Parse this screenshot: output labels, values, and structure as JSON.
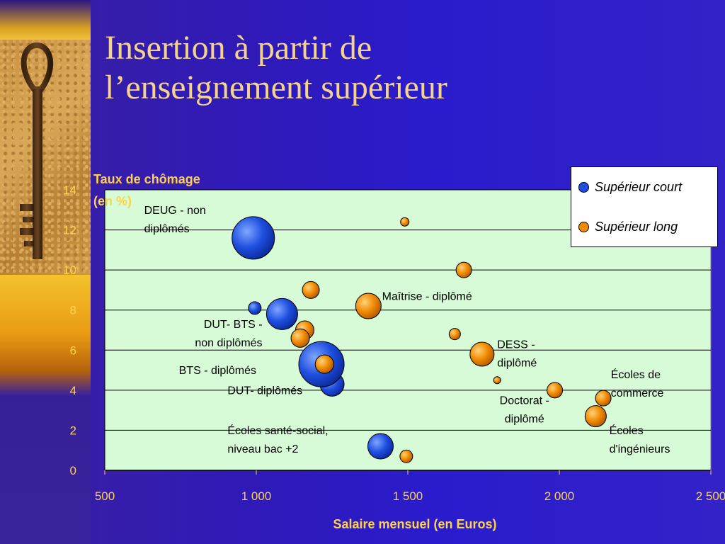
{
  "title_line1": "Insertion à partir de",
  "title_line2": "l’enseignement supérieur",
  "chart_data": {
    "type": "scatter",
    "ylabel": "Taux de chômage",
    "ylabel2": "(en %)",
    "xlabel": "Salaire mensuel (en Euros)",
    "xlim": [
      500,
      2500
    ],
    "ylim": [
      0,
      14
    ],
    "x_ticks": [
      500,
      1000,
      1500,
      2000,
      2500
    ],
    "x_tick_labels": [
      "500",
      "1 000",
      "1 500",
      "2 000",
      "2 500"
    ],
    "y_ticks": [
      0,
      2,
      4,
      6,
      8,
      10,
      12,
      14
    ],
    "y_tick_labels": [
      "0",
      "2",
      "4",
      "6",
      "8",
      "10",
      "12",
      "14"
    ],
    "grid": true,
    "legend_position": "top-right",
    "colors": {
      "court": "#1f4fe0",
      "long": "#f08a00",
      "plot_bg": "#d6fbd6"
    },
    "series": [
      {
        "name": "Supérieur court",
        "key": "court",
        "points": [
          {
            "x": 990,
            "y": 11.6,
            "size": 30
          },
          {
            "x": 995,
            "y": 8.1,
            "size": 9
          },
          {
            "x": 1085,
            "y": 7.8,
            "size": 22
          },
          {
            "x": 1250,
            "y": 4.3,
            "size": 17
          },
          {
            "x": 1215,
            "y": 5.3,
            "size": 32
          },
          {
            "x": 1410,
            "y": 1.2,
            "size": 18
          }
        ]
      },
      {
        "name": "Supérieur long",
        "key": "long",
        "points": [
          {
            "x": 1490,
            "y": 12.4,
            "size": 6
          },
          {
            "x": 1685,
            "y": 10.0,
            "size": 11
          },
          {
            "x": 1180,
            "y": 9.0,
            "size": 12
          },
          {
            "x": 1370,
            "y": 8.2,
            "size": 18
          },
          {
            "x": 1160,
            "y": 7.0,
            "size": 13
          },
          {
            "x": 1145,
            "y": 6.6,
            "size": 13
          },
          {
            "x": 1655,
            "y": 6.8,
            "size": 8
          },
          {
            "x": 1745,
            "y": 5.8,
            "size": 17
          },
          {
            "x": 1225,
            "y": 5.3,
            "size": 13
          },
          {
            "x": 1795,
            "y": 4.5,
            "size": 5
          },
          {
            "x": 1985,
            "y": 4.0,
            "size": 11
          },
          {
            "x": 2145,
            "y": 3.6,
            "size": 11
          },
          {
            "x": 2120,
            "y": 2.7,
            "size": 15
          },
          {
            "x": 1495,
            "y": 0.7,
            "size": 9
          }
        ]
      }
    ],
    "annotations": [
      {
        "lines": [
          "DEUG - non",
          "diplômés"
        ],
        "x": 630,
        "y": 12.8,
        "anchor": "start"
      },
      {
        "lines": [
          "Maîtrise - diplômé"
        ],
        "x": 1415,
        "y": 8.5,
        "anchor": "start"
      },
      {
        "lines": [
          "DUT- BTS    -",
          "non diplômés"
        ],
        "x": 1020,
        "y": 7.1,
        "anchor": "end"
      },
      {
        "lines": [
          "DESS -",
          "diplômé"
        ],
        "x": 1795,
        "y": 6.1,
        "anchor": "start"
      },
      {
        "lines": [
          "BTS - diplômés"
        ],
        "x": 1000,
        "y": 4.8,
        "anchor": "end"
      },
      {
        "lines": [
          "DUT- diplômés"
        ],
        "x": 905,
        "y": 3.8,
        "anchor": "start"
      },
      {
        "lines": [
          "Écoles de",
          "commerce"
        ],
        "x": 2170,
        "y": 4.6,
        "anchor": "start"
      },
      {
        "lines": [
          "Doctorat -",
          "diplômé"
        ],
        "x": 1885,
        "y": 3.3,
        "anchor": "middle"
      },
      {
        "lines": [
          "Écoles santé-social,",
          "niveau bac +2"
        ],
        "x": 905,
        "y": 1.8,
        "anchor": "start"
      },
      {
        "lines": [
          "Écoles",
          "d'ingénieurs"
        ],
        "x": 2165,
        "y": 1.8,
        "anchor": "start"
      }
    ]
  }
}
